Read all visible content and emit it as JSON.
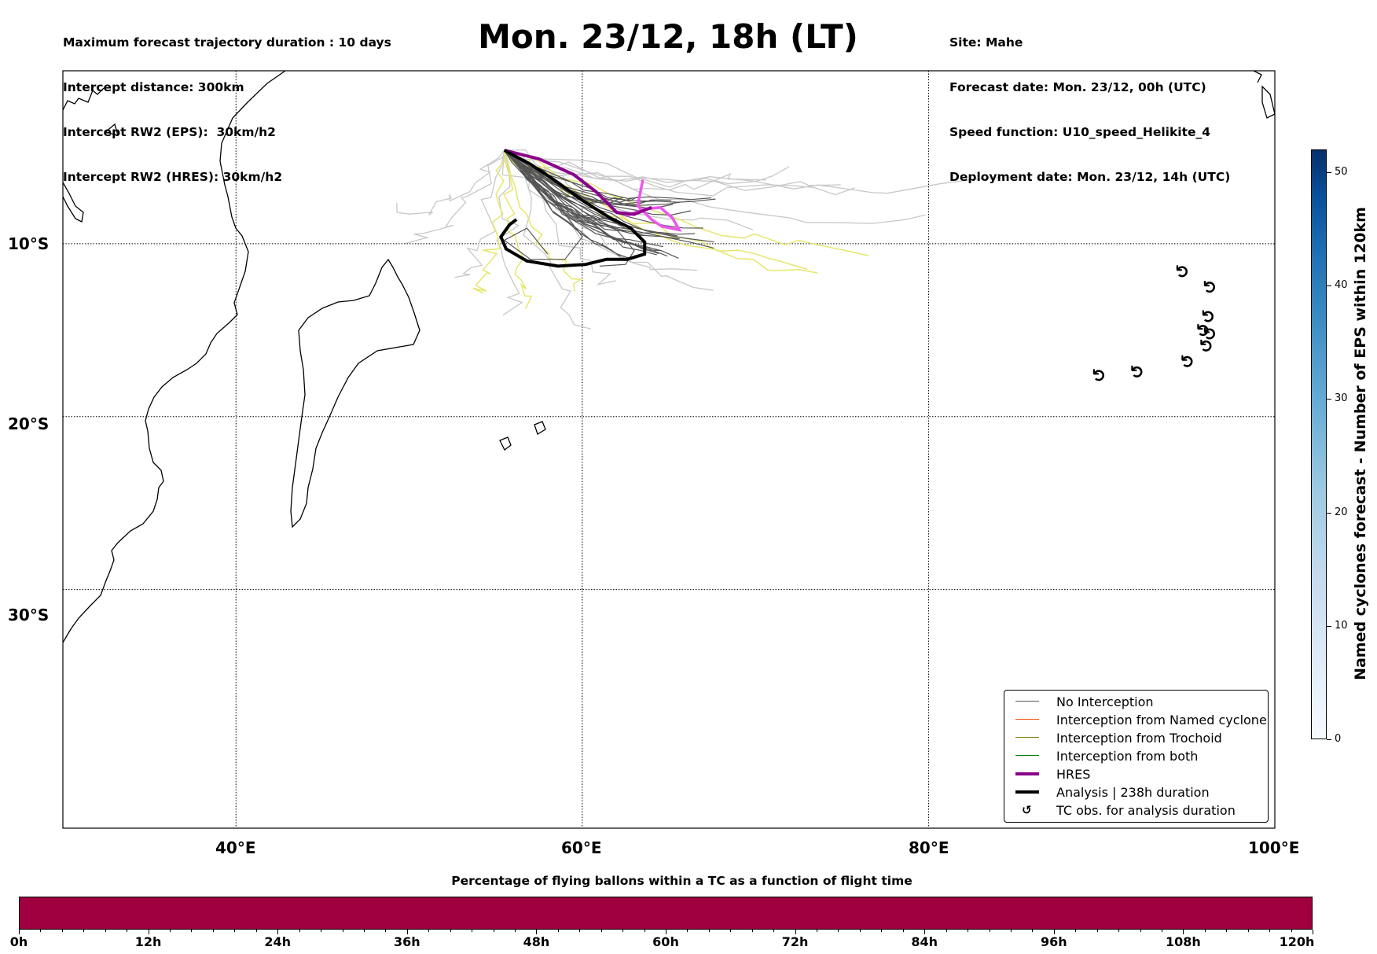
{
  "header": {
    "left": [
      "Maximum forecast trajectory duration : 10 days",
      "Intercept distance: 300km",
      "Intercept RW2 (EPS):  30km/h2",
      "Intercept RW2 (HRES): 30km/h2"
    ],
    "right": [
      "Site: Mahe",
      "Forecast date: Mon. 23/12, 00h (UTC)",
      "Speed function: U10_speed_Helikite_4",
      "Deployment date: Mon. 23/12, 14h (UTC)"
    ],
    "title": "Mon. 23/12, 18h (LT)"
  },
  "map": {
    "lon_range": [
      30,
      100
    ],
    "lat_range": [
      -43.8,
      0
    ],
    "lat_gridlines": [
      -10,
      -20,
      -30
    ],
    "lon_gridlines": [
      40,
      60,
      80
    ],
    "lat_labels": [
      "10°S",
      "20°S",
      "30°S"
    ],
    "lon_labels": [
      "40°E",
      "60°E",
      "80°E",
      "100°E"
    ],
    "colors": {
      "no_interception": "#555555",
      "named_cyclone": "#ff4500",
      "trochoid": "#808000",
      "both": "#008000",
      "hres": "#8b008b",
      "analysis": "#000000",
      "eps_light": "#c8c8c8",
      "eps_yellow": "#e6e66e",
      "eps_pink": "#ee55ee"
    },
    "tc_observations": [
      {
        "lon": 90.2,
        "lat": -17.6
      },
      {
        "lon": 92.4,
        "lat": -17.4
      },
      {
        "lon": 95.3,
        "lat": -16.8
      },
      {
        "lon": 95.0,
        "lat": -11.6
      },
      {
        "lon": 96.6,
        "lat": -12.5
      },
      {
        "lon": 96.5,
        "lat": -14.2
      },
      {
        "lon": 96.2,
        "lat": -15.0
      },
      {
        "lon": 96.6,
        "lat": -15.2
      },
      {
        "lon": 96.4,
        "lat": -15.9
      }
    ]
  },
  "legend": {
    "items": [
      {
        "label": "No Interception",
        "color": "#555555",
        "width": 1.2,
        "kind": "line"
      },
      {
        "label": "Interception from Named cyclone",
        "color": "#ff4500",
        "width": 1.2,
        "kind": "line"
      },
      {
        "label": "Interception from Trochoid",
        "color": "#808000",
        "width": 1.2,
        "kind": "line"
      },
      {
        "label": "Interception from both",
        "color": "#008000",
        "width": 1.2,
        "kind": "line"
      },
      {
        "label": "HRES",
        "color": "#8b008b",
        "width": 4,
        "kind": "line"
      },
      {
        "label": "Analysis | 238h duration",
        "color": "#000000",
        "width": 4,
        "kind": "line"
      },
      {
        "label": "TC obs. for analysis duration",
        "color": "#000000",
        "width": 0,
        "kind": "tc",
        "symbol": "↺"
      }
    ]
  },
  "colorbar_right": {
    "label": "Named cyclones forecast - Number of EPS within 120km",
    "ticks": [
      "0",
      "10",
      "20",
      "30",
      "40",
      "50"
    ],
    "range": [
      0,
      52
    ]
  },
  "colorbar_bottom": {
    "title": "Percentage of flying ballons within a TC as a function of flight time",
    "ticks": [
      "0h",
      "12h",
      "24h",
      "36h",
      "48h",
      "60h",
      "72h",
      "84h",
      "96h",
      "108h",
      "120h"
    ],
    "fill_color": "#a00040"
  }
}
